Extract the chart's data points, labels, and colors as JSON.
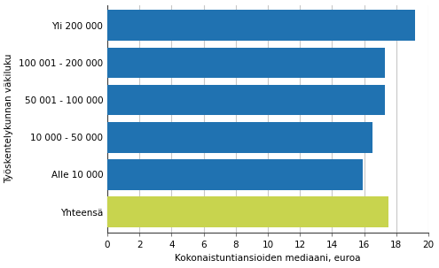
{
  "categories": [
    "Yli 200 000",
    "100 001 - 200 000",
    "50 001 - 100 000",
    "10 000 - 50 000",
    "Alle 10 000",
    "Yhteensä"
  ],
  "values": [
    19.2,
    17.3,
    17.3,
    16.5,
    15.9,
    17.5
  ],
  "bar_colors": [
    "#2072b1",
    "#2072b1",
    "#2072b1",
    "#2072b1",
    "#2072b1",
    "#c8d44e"
  ],
  "xlabel": "Kokonaistuntiansioiden mediaani, euroa",
  "ylabel": "Työskentelykunnan väkiluku",
  "xlim": [
    0,
    20
  ],
  "xticks": [
    0,
    2,
    4,
    6,
    8,
    10,
    12,
    14,
    16,
    18,
    20
  ],
  "background_color": "#ffffff",
  "grid_color": "#c8c8c8",
  "bar_height": 0.82,
  "label_fontsize": 7.5,
  "tick_fontsize": 7.5,
  "ylabel_fontsize": 7.5
}
